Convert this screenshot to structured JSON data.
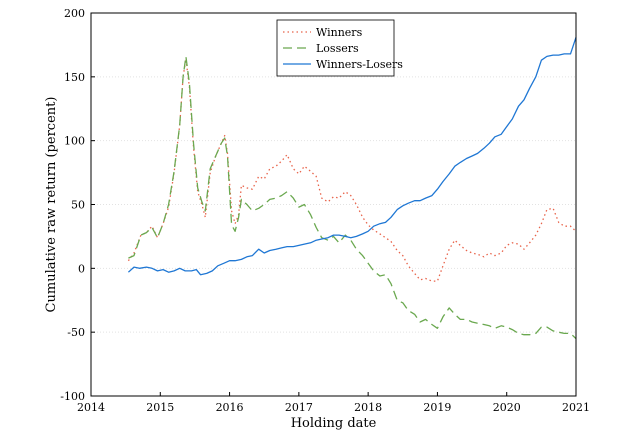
{
  "chart_data": {
    "type": "line",
    "title": "",
    "xlabel": "Holding date",
    "ylabel": "Cumulative raw return (percent)",
    "xlim": [
      2014,
      2021
    ],
    "ylim": [
      -100,
      200
    ],
    "x_ticks": [
      2014,
      2015,
      2016,
      2017,
      2018,
      2019,
      2020,
      2021
    ],
    "y_ticks": [
      -100,
      -50,
      0,
      50,
      100,
      150,
      200
    ],
    "grid": "horizontal dotted",
    "legend_position": "top-center",
    "series": [
      {
        "name": "Winners",
        "color": "#e8634a",
        "dash": "dotted",
        "points": [
          [
            2014.54,
            6
          ],
          [
            2014.62,
            12
          ],
          [
            2014.72,
            26
          ],
          [
            2014.8,
            28
          ],
          [
            2014.88,
            33
          ],
          [
            2014.96,
            24
          ],
          [
            2015.04,
            35
          ],
          [
            2015.12,
            48
          ],
          [
            2015.2,
            75
          ],
          [
            2015.28,
            112
          ],
          [
            2015.33,
            150
          ],
          [
            2015.37,
            164
          ],
          [
            2015.42,
            142
          ],
          [
            2015.48,
            95
          ],
          [
            2015.54,
            60
          ],
          [
            2015.6,
            50
          ],
          [
            2015.65,
            40
          ],
          [
            2015.72,
            75
          ],
          [
            2015.8,
            88
          ],
          [
            2015.88,
            98
          ],
          [
            2015.93,
            104
          ],
          [
            2015.97,
            90
          ],
          [
            2016.03,
            45
          ],
          [
            2016.08,
            35
          ],
          [
            2016.13,
            42
          ],
          [
            2016.17,
            65
          ],
          [
            2016.25,
            63
          ],
          [
            2016.33,
            62
          ],
          [
            2016.42,
            72
          ],
          [
            2016.5,
            70
          ],
          [
            2016.58,
            78
          ],
          [
            2016.67,
            80
          ],
          [
            2016.75,
            84
          ],
          [
            2016.83,
            89
          ],
          [
            2016.92,
            78
          ],
          [
            2017.0,
            74
          ],
          [
            2017.08,
            80
          ],
          [
            2017.17,
            76
          ],
          [
            2017.25,
            72
          ],
          [
            2017.33,
            55
          ],
          [
            2017.42,
            52
          ],
          [
            2017.5,
            56
          ],
          [
            2017.58,
            55
          ],
          [
            2017.67,
            60
          ],
          [
            2017.75,
            57
          ],
          [
            2017.83,
            50
          ],
          [
            2017.92,
            40
          ],
          [
            2018.0,
            34
          ],
          [
            2018.08,
            30
          ],
          [
            2018.17,
            27
          ],
          [
            2018.25,
            24
          ],
          [
            2018.33,
            21
          ],
          [
            2018.42,
            14
          ],
          [
            2018.5,
            10
          ],
          [
            2018.58,
            2
          ],
          [
            2018.67,
            -4
          ],
          [
            2018.75,
            -9
          ],
          [
            2018.83,
            -8
          ],
          [
            2018.92,
            -10
          ],
          [
            2019.0,
            -10
          ],
          [
            2019.08,
            2
          ],
          [
            2019.17,
            15
          ],
          [
            2019.25,
            22
          ],
          [
            2019.33,
            18
          ],
          [
            2019.42,
            14
          ],
          [
            2019.5,
            12
          ],
          [
            2019.58,
            11
          ],
          [
            2019.67,
            9
          ],
          [
            2019.75,
            12
          ],
          [
            2019.83,
            10
          ],
          [
            2019.92,
            12
          ],
          [
            2020.0,
            18
          ],
          [
            2020.08,
            20
          ],
          [
            2020.17,
            19
          ],
          [
            2020.25,
            15
          ],
          [
            2020.33,
            20
          ],
          [
            2020.42,
            26
          ],
          [
            2020.5,
            35
          ],
          [
            2020.58,
            46
          ],
          [
            2020.67,
            47
          ],
          [
            2020.75,
            36
          ],
          [
            2020.83,
            33
          ],
          [
            2020.92,
            33
          ],
          [
            2021.0,
            29
          ]
        ]
      },
      {
        "name": "Lossers",
        "color": "#6aa84f",
        "dash": "dashed",
        "points": [
          [
            2014.54,
            8
          ],
          [
            2014.62,
            10
          ],
          [
            2014.72,
            26
          ],
          [
            2014.8,
            28
          ],
          [
            2014.88,
            32
          ],
          [
            2014.96,
            24
          ],
          [
            2015.04,
            35
          ],
          [
            2015.12,
            50
          ],
          [
            2015.2,
            76
          ],
          [
            2015.28,
            112
          ],
          [
            2015.33,
            150
          ],
          [
            2015.37,
            166
          ],
          [
            2015.42,
            145
          ],
          [
            2015.48,
            98
          ],
          [
            2015.54,
            63
          ],
          [
            2015.6,
            52
          ],
          [
            2015.65,
            45
          ],
          [
            2015.72,
            78
          ],
          [
            2015.8,
            88
          ],
          [
            2015.88,
            98
          ],
          [
            2015.93,
            102
          ],
          [
            2015.97,
            88
          ],
          [
            2016.03,
            34
          ],
          [
            2016.08,
            29
          ],
          [
            2016.13,
            40
          ],
          [
            2016.17,
            54
          ],
          [
            2016.25,
            50
          ],
          [
            2016.33,
            45
          ],
          [
            2016.42,
            47
          ],
          [
            2016.5,
            50
          ],
          [
            2016.58,
            54
          ],
          [
            2016.67,
            55
          ],
          [
            2016.75,
            57
          ],
          [
            2016.83,
            60
          ],
          [
            2016.92,
            55
          ],
          [
            2017.0,
            48
          ],
          [
            2017.08,
            50
          ],
          [
            2017.17,
            42
          ],
          [
            2017.25,
            32
          ],
          [
            2017.33,
            24
          ],
          [
            2017.42,
            22
          ],
          [
            2017.5,
            25
          ],
          [
            2017.58,
            20
          ],
          [
            2017.67,
            26
          ],
          [
            2017.75,
            22
          ],
          [
            2017.83,
            15
          ],
          [
            2017.92,
            10
          ],
          [
            2018.0,
            4
          ],
          [
            2018.08,
            -2
          ],
          [
            2018.17,
            -6
          ],
          [
            2018.25,
            -5
          ],
          [
            2018.33,
            -12
          ],
          [
            2018.42,
            -25
          ],
          [
            2018.5,
            -27
          ],
          [
            2018.58,
            -33
          ],
          [
            2018.67,
            -36
          ],
          [
            2018.75,
            -42
          ],
          [
            2018.83,
            -40
          ],
          [
            2018.92,
            -44
          ],
          [
            2019.0,
            -47
          ],
          [
            2019.08,
            -38
          ],
          [
            2019.17,
            -31
          ],
          [
            2019.25,
            -36
          ],
          [
            2019.33,
            -40
          ],
          [
            2019.42,
            -40
          ],
          [
            2019.5,
            -42
          ],
          [
            2019.58,
            -43
          ],
          [
            2019.67,
            -44
          ],
          [
            2019.75,
            -45
          ],
          [
            2019.83,
            -47
          ],
          [
            2019.92,
            -45
          ],
          [
            2020.0,
            -46
          ],
          [
            2020.08,
            -48
          ],
          [
            2020.17,
            -51
          ],
          [
            2020.25,
            -52
          ],
          [
            2020.33,
            -52
          ],
          [
            2020.42,
            -51
          ],
          [
            2020.5,
            -46
          ],
          [
            2020.58,
            -46
          ],
          [
            2020.67,
            -49
          ],
          [
            2020.75,
            -50
          ],
          [
            2020.83,
            -51
          ],
          [
            2020.92,
            -51
          ],
          [
            2021.0,
            -55
          ]
        ]
      },
      {
        "name": "Winners-Losers",
        "color": "#1f77d4",
        "dash": "solid",
        "points": [
          [
            2014.54,
            -3
          ],
          [
            2014.62,
            1
          ],
          [
            2014.7,
            0
          ],
          [
            2014.8,
            1
          ],
          [
            2014.88,
            0
          ],
          [
            2014.96,
            -2
          ],
          [
            2015.04,
            -1
          ],
          [
            2015.12,
            -3
          ],
          [
            2015.2,
            -2
          ],
          [
            2015.28,
            0
          ],
          [
            2015.36,
            -2
          ],
          [
            2015.45,
            -2
          ],
          [
            2015.52,
            -1
          ],
          [
            2015.58,
            -5
          ],
          [
            2015.67,
            -4
          ],
          [
            2015.75,
            -2
          ],
          [
            2015.83,
            2
          ],
          [
            2015.92,
            4
          ],
          [
            2016.0,
            6
          ],
          [
            2016.08,
            6
          ],
          [
            2016.17,
            7
          ],
          [
            2016.25,
            9
          ],
          [
            2016.33,
            10
          ],
          [
            2016.42,
            15
          ],
          [
            2016.5,
            12
          ],
          [
            2016.58,
            14
          ],
          [
            2016.67,
            15
          ],
          [
            2016.75,
            16
          ],
          [
            2016.83,
            17
          ],
          [
            2016.92,
            17
          ],
          [
            2017.0,
            18
          ],
          [
            2017.08,
            19
          ],
          [
            2017.17,
            20
          ],
          [
            2017.25,
            22
          ],
          [
            2017.33,
            23
          ],
          [
            2017.42,
            24
          ],
          [
            2017.5,
            26
          ],
          [
            2017.58,
            26
          ],
          [
            2017.67,
            25
          ],
          [
            2017.75,
            24
          ],
          [
            2017.83,
            25
          ],
          [
            2017.92,
            27
          ],
          [
            2018.0,
            29
          ],
          [
            2018.08,
            33
          ],
          [
            2018.17,
            35
          ],
          [
            2018.25,
            36
          ],
          [
            2018.33,
            40
          ],
          [
            2018.42,
            46
          ],
          [
            2018.5,
            49
          ],
          [
            2018.58,
            51
          ],
          [
            2018.67,
            53
          ],
          [
            2018.75,
            53
          ],
          [
            2018.83,
            55
          ],
          [
            2018.92,
            57
          ],
          [
            2019.0,
            62
          ],
          [
            2019.08,
            68
          ],
          [
            2019.17,
            74
          ],
          [
            2019.25,
            80
          ],
          [
            2019.33,
            83
          ],
          [
            2019.42,
            86
          ],
          [
            2019.5,
            88
          ],
          [
            2019.58,
            90
          ],
          [
            2019.67,
            94
          ],
          [
            2019.75,
            98
          ],
          [
            2019.83,
            103
          ],
          [
            2019.92,
            105
          ],
          [
            2020.0,
            111
          ],
          [
            2020.08,
            117
          ],
          [
            2020.17,
            127
          ],
          [
            2020.25,
            132
          ],
          [
            2020.33,
            141
          ],
          [
            2020.42,
            150
          ],
          [
            2020.5,
            163
          ],
          [
            2020.58,
            166
          ],
          [
            2020.67,
            167
          ],
          [
            2020.75,
            167
          ],
          [
            2020.83,
            168
          ],
          [
            2020.92,
            168
          ],
          [
            2021.0,
            181
          ]
        ]
      }
    ]
  }
}
